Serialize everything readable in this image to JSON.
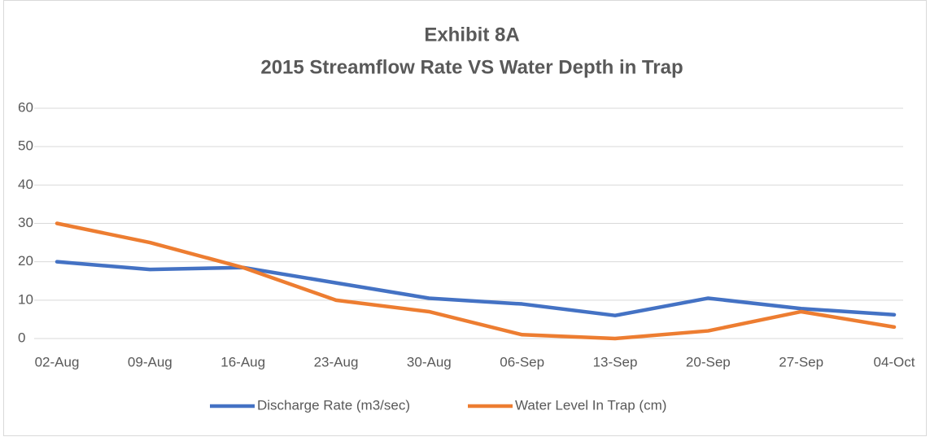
{
  "chart_data": {
    "type": "line",
    "title": "Exhibit 8A",
    "subtitle": "2015 Streamflow Rate VS Water Depth in Trap",
    "categories": [
      "02-Aug",
      "09-Aug",
      "16-Aug",
      "23-Aug",
      "30-Aug",
      "06-Sep",
      "13-Sep",
      "20-Sep",
      "27-Sep",
      "04-Oct"
    ],
    "series": [
      {
        "name": "Discharge Rate (m3/sec)",
        "color": "#4472c4",
        "values": [
          20,
          18,
          18.5,
          14.5,
          10.5,
          9,
          6,
          10.5,
          7.8,
          6.2
        ]
      },
      {
        "name": "Water Level In Trap (cm)",
        "color": "#ed7d31",
        "values": [
          30,
          25,
          18.5,
          10,
          7,
          1,
          0,
          2,
          7,
          3
        ]
      }
    ],
    "ylim": [
      0,
      60
    ],
    "yticks": [
      0,
      10,
      20,
      30,
      40,
      50,
      60
    ],
    "grid": true,
    "legend": "bottom"
  }
}
